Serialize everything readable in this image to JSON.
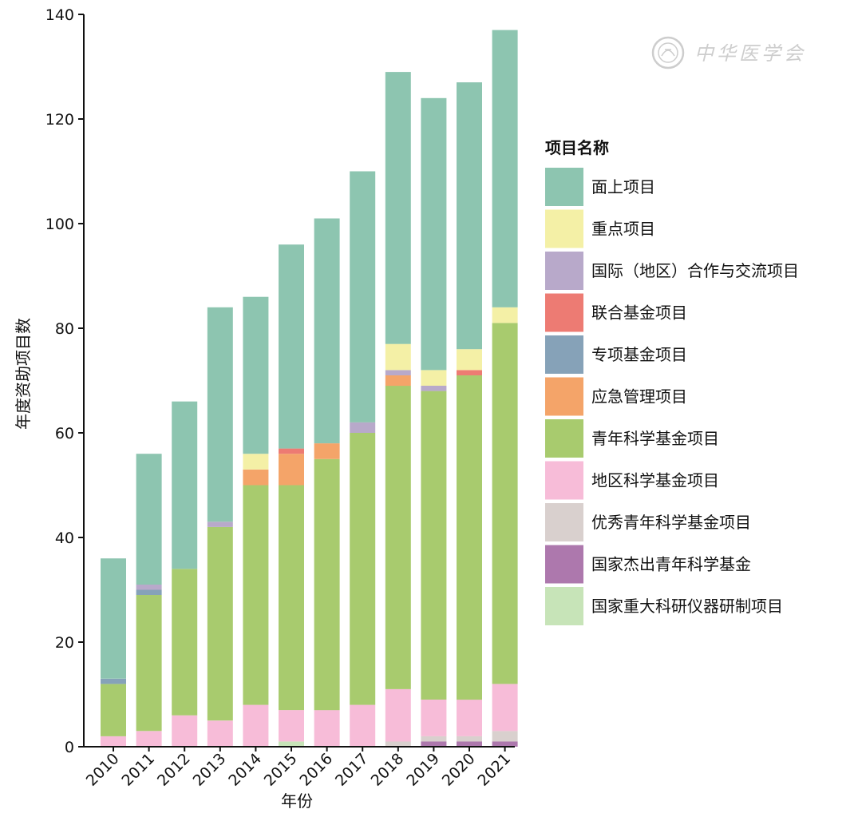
{
  "chart_data": {
    "type": "bar",
    "stacked": true,
    "xlabel": "年份",
    "ylabel": "年度资助项目数",
    "ylim": [
      0,
      140
    ],
    "yticks": [
      0,
      20,
      40,
      60,
      80,
      100,
      120,
      140
    ],
    "grid": false,
    "legend_title": "项目名称",
    "legend_position": "right",
    "categories": [
      "2010",
      "2011",
      "2012",
      "2013",
      "2014",
      "2015",
      "2016",
      "2017",
      "2018",
      "2019",
      "2020",
      "2021"
    ],
    "series": [
      {
        "name": "国家重大科研仪器研制项目",
        "color": "#c7e4b8",
        "values": [
          0,
          0,
          0,
          0,
          0,
          1,
          0,
          0,
          0,
          0,
          0,
          0
        ]
      },
      {
        "name": "国家杰出青年科学基金",
        "color": "#ad78ad",
        "values": [
          0,
          0,
          0,
          0,
          0,
          0,
          0,
          0,
          0,
          1,
          1,
          1
        ]
      },
      {
        "name": "优秀青年科学基金项目",
        "color": "#d9d0ce",
        "values": [
          0,
          0,
          0,
          0,
          0,
          0,
          0,
          0,
          1,
          1,
          1,
          2
        ]
      },
      {
        "name": "地区科学基金项目",
        "color": "#f7bcd8",
        "values": [
          2,
          3,
          6,
          5,
          8,
          6,
          7,
          8,
          10,
          7,
          7,
          9
        ]
      },
      {
        "name": "青年科学基金项目",
        "color": "#a8cb6e",
        "values": [
          10,
          26,
          28,
          37,
          42,
          43,
          48,
          52,
          58,
          59,
          62,
          69
        ]
      },
      {
        "name": "应急管理项目",
        "color": "#f4a469",
        "values": [
          0,
          0,
          0,
          0,
          3,
          6,
          3,
          0,
          2,
          0,
          0,
          0
        ]
      },
      {
        "name": "专项基金项目",
        "color": "#86a2b8",
        "values": [
          1,
          1,
          0,
          0,
          0,
          0,
          0,
          0,
          0,
          0,
          0,
          0
        ]
      },
      {
        "name": "联合基金项目",
        "color": "#ed7b73",
        "values": [
          0,
          0,
          0,
          0,
          0,
          1,
          0,
          0,
          0,
          0,
          1,
          0
        ]
      },
      {
        "name": "国际（地区）合作与交流项目",
        "color": "#b8a9ca",
        "values": [
          0,
          1,
          0,
          1,
          0,
          0,
          0,
          2,
          1,
          1,
          0,
          0
        ]
      },
      {
        "name": "重点项目",
        "color": "#f4f0a6",
        "values": [
          0,
          0,
          0,
          0,
          3,
          0,
          0,
          0,
          5,
          3,
          4,
          3
        ]
      },
      {
        "name": "面上项目",
        "color": "#8dc5b0",
        "values": [
          23,
          25,
          32,
          41,
          30,
          39,
          43,
          48,
          52,
          52,
          51,
          53
        ]
      }
    ]
  },
  "legend_order": [
    "面上项目",
    "重点项目",
    "国际（地区）合作与交流项目",
    "联合基金项目",
    "专项基金项目",
    "应急管理项目",
    "青年科学基金项目",
    "地区科学基金项目",
    "优秀青年科学基金项目",
    "国家杰出青年科学基金",
    "国家重大科研仪器研制项目"
  ],
  "watermark": {
    "text": "中华医学会",
    "icon": "society-seal-icon"
  }
}
